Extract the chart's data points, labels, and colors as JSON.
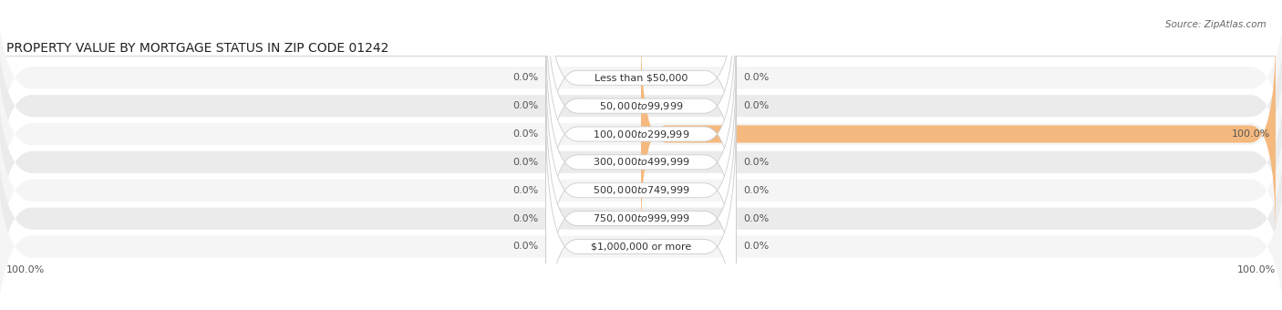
{
  "title": "PROPERTY VALUE BY MORTGAGE STATUS IN ZIP CODE 01242",
  "source_text": "Source: ZipAtlas.com",
  "categories": [
    "Less than $50,000",
    "$50,000 to $99,999",
    "$100,000 to $299,999",
    "$300,000 to $499,999",
    "$500,000 to $749,999",
    "$750,000 to $999,999",
    "$1,000,000 or more"
  ],
  "without_mortgage": [
    0.0,
    0.0,
    0.0,
    0.0,
    0.0,
    0.0,
    0.0
  ],
  "with_mortgage": [
    0.0,
    0.0,
    100.0,
    0.0,
    0.0,
    0.0,
    0.0
  ],
  "without_mortgage_color": "#9ab3d5",
  "with_mortgage_color": "#f5b97f",
  "row_bg_light": "#f5f5f5",
  "row_bg_dark": "#ebebeb",
  "xlim": 100.0,
  "title_fontsize": 10,
  "label_fontsize": 8,
  "tick_fontsize": 8,
  "source_fontsize": 7.5,
  "legend_fontsize": 8,
  "figsize": [
    14.06,
    3.4
  ],
  "dpi": 100
}
